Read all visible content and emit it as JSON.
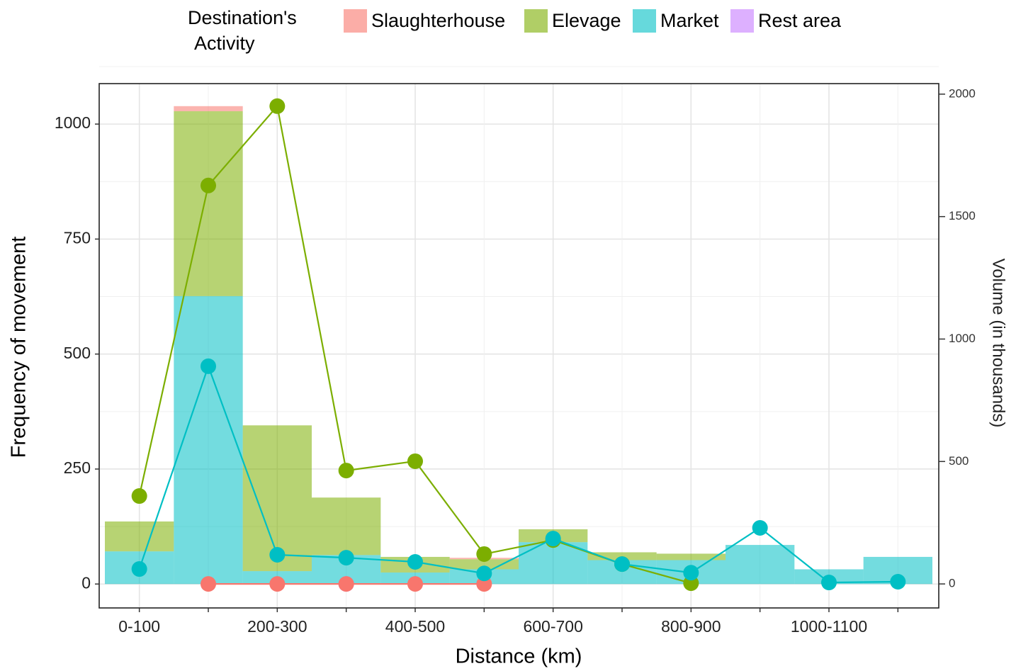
{
  "chart_data": {
    "type": "bar",
    "legend_title": [
      "Destination's",
      "Activity"
    ],
    "xlabel": "Distance (km)",
    "ylabel": "Frequency of movement",
    "y2label": "Volume (in thousands)",
    "categories": [
      "0-100",
      null,
      "200-300",
      null,
      "400-500",
      null,
      "600-700",
      null,
      "800-900",
      null,
      "1000-1100",
      null
    ],
    "series": [
      {
        "name": "Slaughterhouse",
        "color": "#F8766D",
        "values": [
          0,
          11,
          0,
          0,
          0,
          3,
          0,
          0,
          0,
          0,
          0,
          0
        ],
        "volume": [
          null,
          0,
          0,
          0,
          0,
          0,
          null,
          null,
          null,
          null,
          null,
          null
        ]
      },
      {
        "name": "Elevage",
        "color": "#7CAE00",
        "values": [
          65,
          402,
          317,
          125,
          34,
          22,
          28,
          17,
          14,
          0,
          0,
          0
        ],
        "volume": [
          359,
          1627,
          1951,
          463,
          501,
          122,
          179,
          81,
          3,
          null,
          null,
          null
        ]
      },
      {
        "name": "Market",
        "color": "#00BFC4",
        "values": [
          71,
          626,
          28,
          63,
          25,
          32,
          91,
          52,
          52,
          85,
          32,
          59
        ],
        "volume": [
          61,
          889,
          119,
          107,
          90,
          43,
          185,
          81,
          46,
          229,
          6,
          9
        ]
      },
      {
        "name": "Rest area",
        "color": "#C77CFF",
        "values": [
          0,
          0,
          0,
          0,
          0,
          0,
          0,
          0,
          0,
          0,
          0,
          0
        ],
        "volume": [
          null,
          null,
          null,
          0,
          null,
          null,
          null,
          null,
          null,
          null,
          null,
          null
        ]
      }
    ],
    "ylim": [
      -52,
      1088
    ],
    "yticks": [
      0,
      250,
      500,
      750,
      1000
    ],
    "y2lim": [
      -98,
      2043
    ],
    "y2ticks": [
      0,
      500,
      1000,
      1500,
      2000
    ],
    "grid": true
  }
}
